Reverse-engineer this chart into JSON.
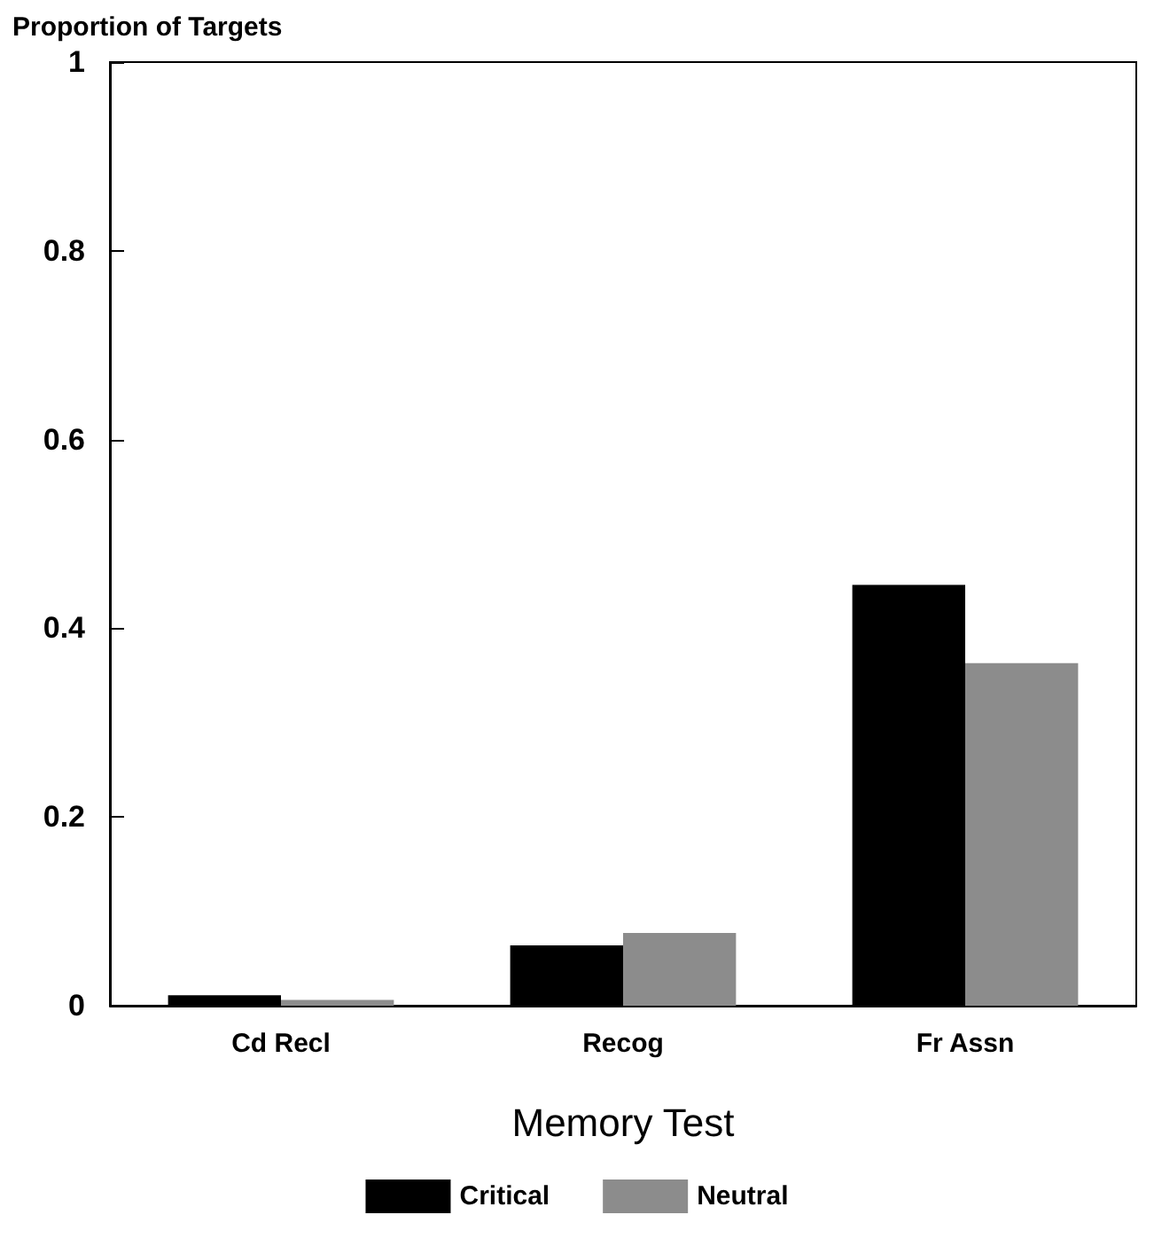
{
  "chart_data": {
    "type": "bar",
    "ylabel": "Proportion of Targets",
    "xlabel": "Memory Test",
    "categories": [
      "Cd Recl",
      "Recog",
      "Fr Assn"
    ],
    "series": [
      {
        "name": "Critical",
        "color": "#000000",
        "values": [
          0.011,
          0.064,
          0.446
        ]
      },
      {
        "name": "Neutral",
        "color": "#8c8c8c",
        "values": [
          0.006,
          0.077,
          0.363
        ]
      }
    ],
    "ylim": [
      0,
      1
    ],
    "yticks": [
      0,
      0.2,
      0.4,
      0.6,
      0.8,
      1
    ],
    "grid": false,
    "legend": "bottom"
  }
}
